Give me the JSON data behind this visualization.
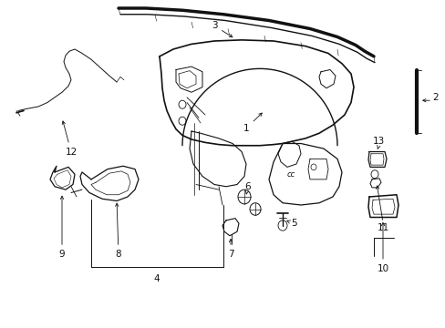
{
  "figsize": [
    4.89,
    3.6
  ],
  "dpi": 100,
  "bg": "#ffffff",
  "lc": "#111111",
  "fs": 7.5,
  "lw": 0.8
}
